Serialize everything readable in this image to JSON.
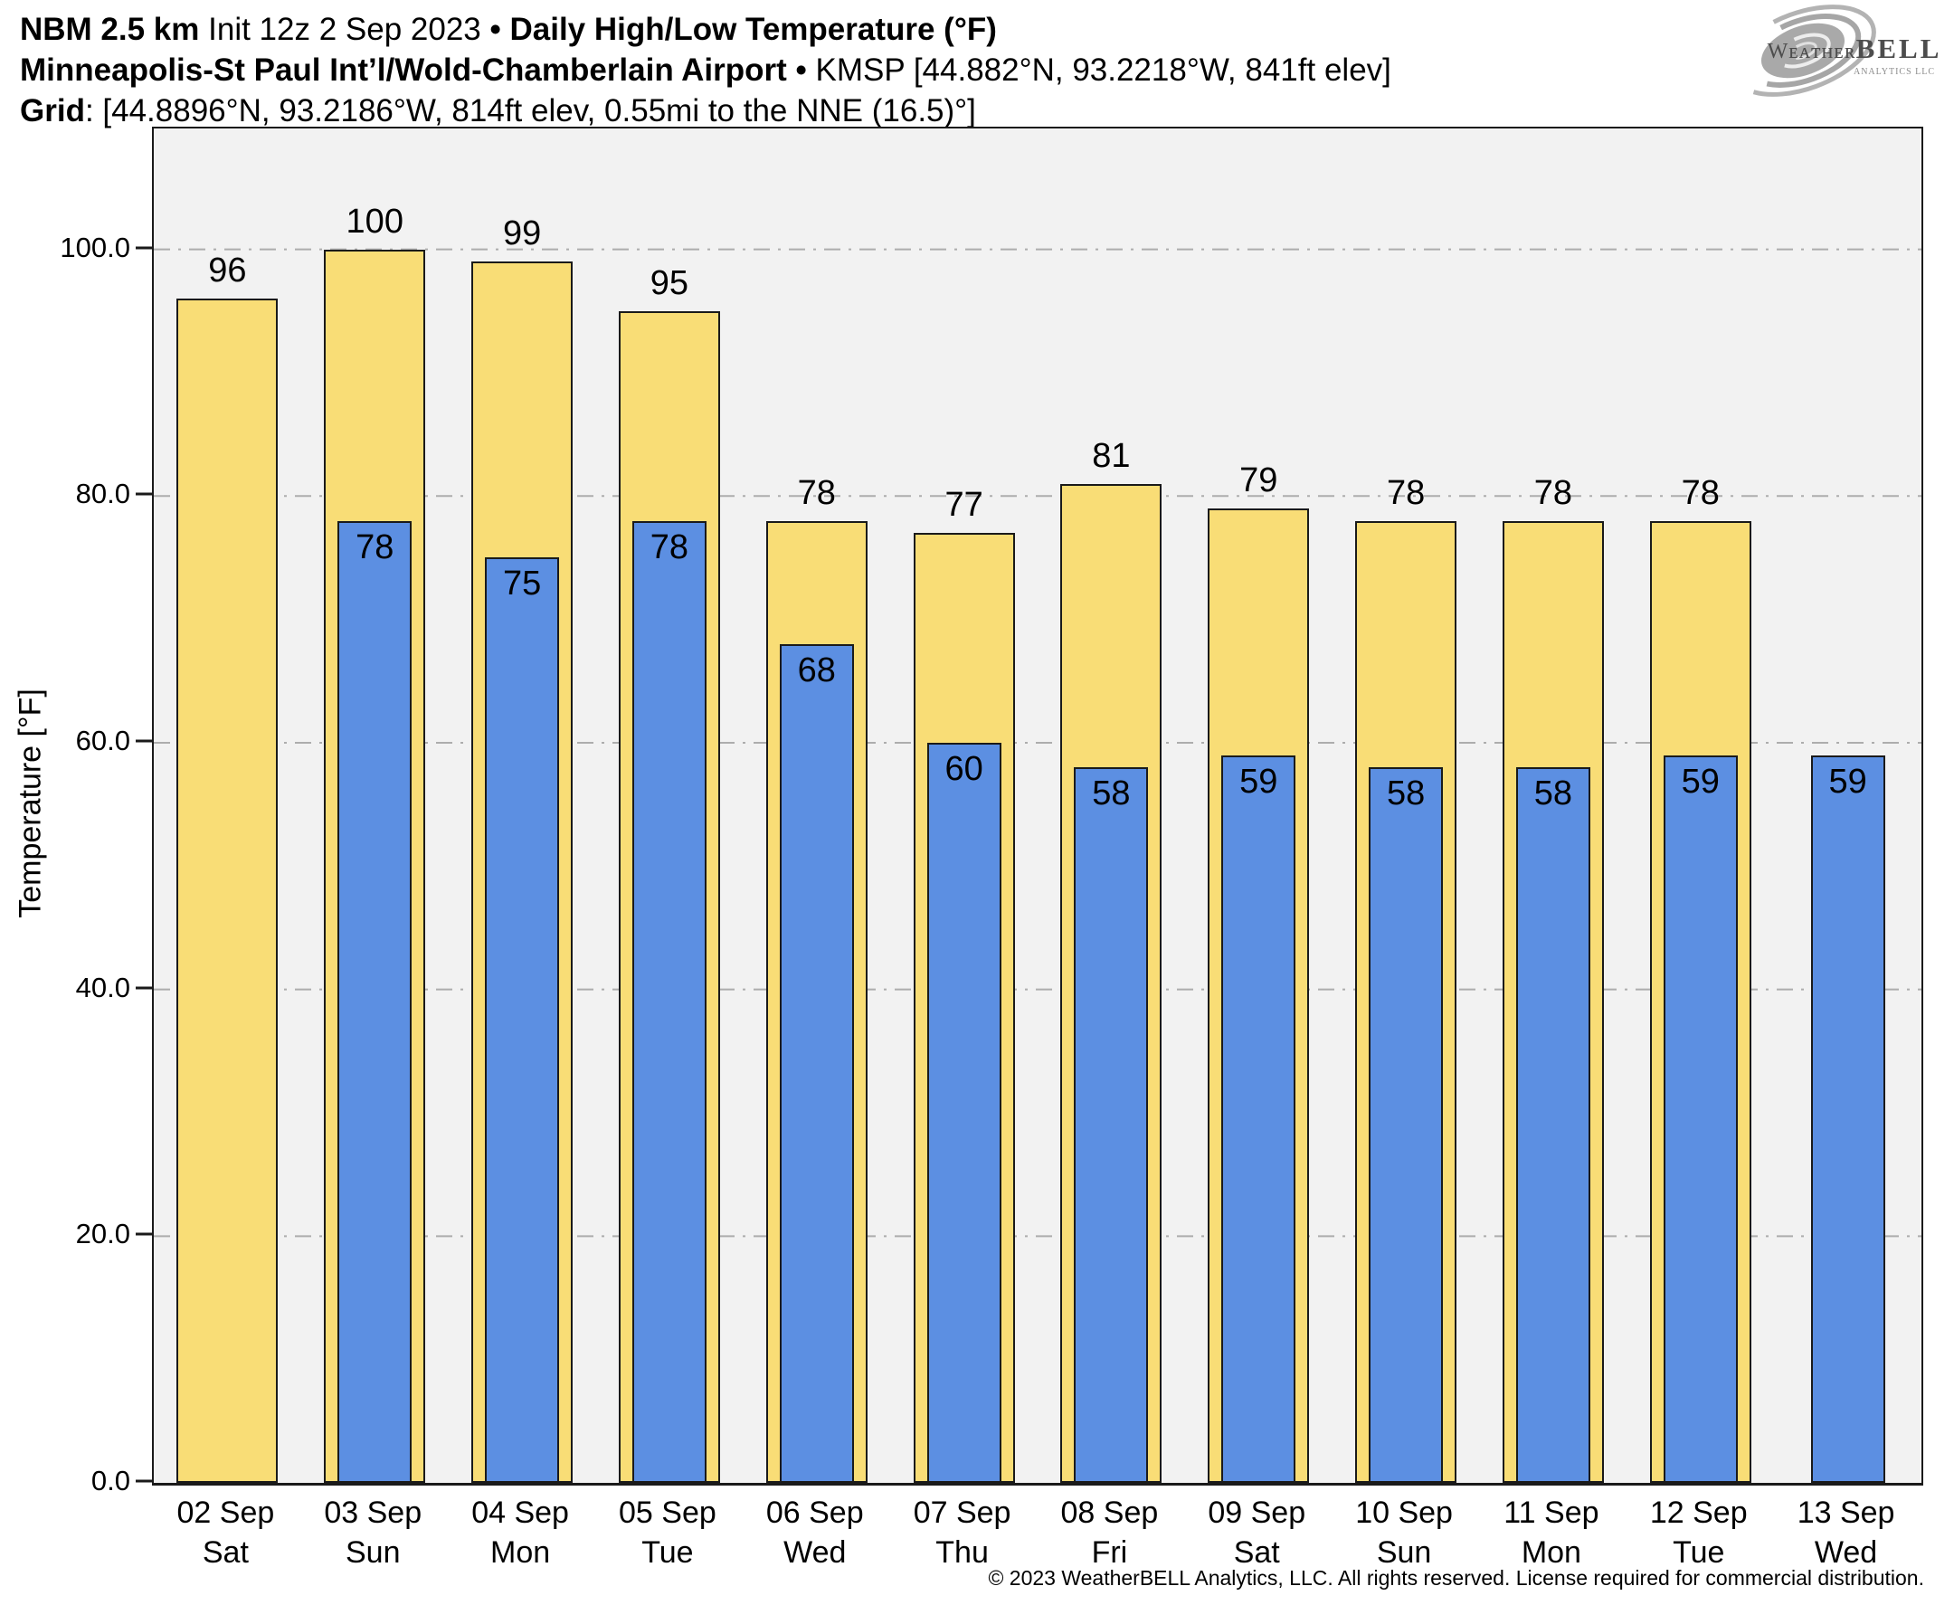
{
  "header": {
    "line1_model": "NBM 2.5 km",
    "line1_init": " Init 12z 2 Sep 2023 ",
    "separator": "•",
    "line1_title": " Daily High/Low Temperature (°F)",
    "line2_station": "Minneapolis-St Paul Int’l/Wold-Chamberlain Airport",
    "line2_coords": " KMSP [44.882°N, 93.2218°W, 841ft elev]",
    "line3_label": "Grid",
    "line3_value": ": [44.8896°N, 93.2186°W, 814ft elev, 0.55mi to the NNE (16.5)°]"
  },
  "logo": {
    "brand_part1": "Weather",
    "brand_part2": "BELL",
    "subtext": "Analytics LLC"
  },
  "chart_data": {
    "type": "bar",
    "title": "Daily High/Low Temperature (°F)",
    "ylabel": "Temperature [°F]",
    "ylim": [
      0,
      109.8
    ],
    "yticks": [
      0,
      20,
      40,
      60,
      80,
      100
    ],
    "ytick_labels": [
      "0.0",
      "20.0",
      "40.0",
      "60.0",
      "80.0",
      "100.0"
    ],
    "grid": "horizontal dash-dot gridlines at 20/40/60/80/100, no legend",
    "categories": [
      {
        "date": "02 Sep",
        "day": "Sat"
      },
      {
        "date": "03 Sep",
        "day": "Sun"
      },
      {
        "date": "04 Sep",
        "day": "Mon"
      },
      {
        "date": "05 Sep",
        "day": "Tue"
      },
      {
        "date": "06 Sep",
        "day": "Wed"
      },
      {
        "date": "07 Sep",
        "day": "Thu"
      },
      {
        "date": "08 Sep",
        "day": "Fri"
      },
      {
        "date": "09 Sep",
        "day": "Sat"
      },
      {
        "date": "10 Sep",
        "day": "Sun"
      },
      {
        "date": "11 Sep",
        "day": "Mon"
      },
      {
        "date": "12 Sep",
        "day": "Tue"
      },
      {
        "date": "13 Sep",
        "day": "Wed"
      }
    ],
    "series": [
      {
        "name": "Daily High",
        "color": "#F9DD76",
        "values": [
          96,
          100,
          99,
          95,
          78,
          77,
          81,
          79,
          78,
          78,
          78,
          null
        ]
      },
      {
        "name": "Daily Low",
        "color": "#5C8FE2",
        "values": [
          null,
          78,
          75,
          78,
          68,
          60,
          58,
          59,
          58,
          58,
          59,
          59
        ]
      }
    ],
    "colors": {
      "plot_background": "#f2f2f2",
      "gridline": "#adadad",
      "bar_border": "#1a1a1a",
      "page_background": "#ffffff"
    }
  },
  "footer": {
    "copyright": "© 2023 WeatherBELL Analytics, LLC. All rights reserved. License required for commercial distribution."
  }
}
